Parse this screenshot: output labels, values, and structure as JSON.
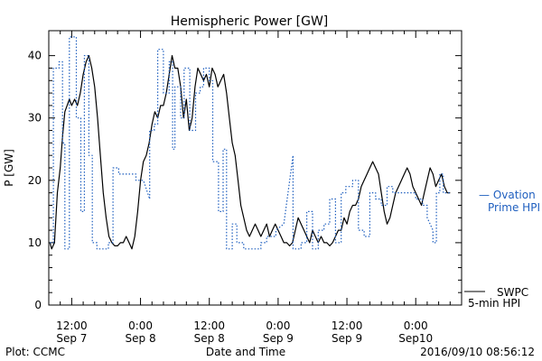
{
  "chart_data": {
    "type": "line",
    "title": "Hemispheric Power [GW]",
    "ylabel": "P [GW]",
    "xlabel": "Date and Time",
    "footer_left": "Plot: CCMC",
    "footer_right": "2016/09/10 08:56:12",
    "ylim": [
      0,
      44
    ],
    "xlim_hours": [
      -4,
      68
    ],
    "y_ticks": [
      0,
      10,
      20,
      30,
      40
    ],
    "x_ticks": [
      {
        "hour": 0,
        "line1": "12:00",
        "line2": "Sep 7"
      },
      {
        "hour": 12,
        "line1": "0:00",
        "line2": "Sep 8"
      },
      {
        "hour": 24,
        "line1": "12:00",
        "line2": "Sep 8"
      },
      {
        "hour": 36,
        "line1": "0:00",
        "line2": "Sep 9"
      },
      {
        "hour": 48,
        "line1": "12:00",
        "line2": "Sep 9"
      },
      {
        "hour": 60,
        "line1": "0:00",
        "line2": "Sep10"
      }
    ],
    "legend": {
      "ovation_label_1": "— Ovation",
      "ovation_label_2": "Prime HPI",
      "swpc_label_1": "SWPC",
      "swpc_label_2": "5-min HPI"
    },
    "colors": {
      "swpc": "#000000",
      "ovation": "#1f5fbf"
    },
    "series": [
      {
        "name": "SWPC 5-min HPI",
        "style": "solid",
        "color": "#000000",
        "points": [
          [
            -3.8,
            10
          ],
          [
            -3.5,
            9
          ],
          [
            -3,
            10
          ],
          [
            -2.5,
            18
          ],
          [
            -2,
            22
          ],
          [
            -1.6,
            27
          ],
          [
            -1.2,
            31
          ],
          [
            -0.8,
            32
          ],
          [
            -0.4,
            33
          ],
          [
            0,
            32
          ],
          [
            0.5,
            33
          ],
          [
            1,
            32
          ],
          [
            1.5,
            34
          ],
          [
            2,
            37
          ],
          [
            2.5,
            39
          ],
          [
            3,
            40
          ],
          [
            3.5,
            38
          ],
          [
            4,
            35
          ],
          [
            4.5,
            30
          ],
          [
            5,
            24
          ],
          [
            5.5,
            18
          ],
          [
            6,
            14
          ],
          [
            6.5,
            11
          ],
          [
            7,
            10
          ],
          [
            7.5,
            9.5
          ],
          [
            8,
            9.5
          ],
          [
            8.5,
            10
          ],
          [
            9,
            10
          ],
          [
            9.5,
            11
          ],
          [
            10,
            10
          ],
          [
            10.5,
            9
          ],
          [
            11,
            11
          ],
          [
            11.5,
            15
          ],
          [
            12,
            20
          ],
          [
            12.5,
            23
          ],
          [
            13,
            24
          ],
          [
            13.5,
            26
          ],
          [
            14,
            29
          ],
          [
            14.5,
            31
          ],
          [
            15,
            30
          ],
          [
            15.5,
            32
          ],
          [
            16,
            32
          ],
          [
            16.5,
            34
          ],
          [
            17,
            37
          ],
          [
            17.5,
            40
          ],
          [
            18,
            38
          ],
          [
            18.5,
            38
          ],
          [
            19,
            35
          ],
          [
            19.5,
            30
          ],
          [
            20,
            33
          ],
          [
            20.5,
            28
          ],
          [
            21,
            30
          ],
          [
            21.5,
            35
          ],
          [
            22,
            38
          ],
          [
            22.5,
            37
          ],
          [
            23,
            36
          ],
          [
            23.5,
            37
          ],
          [
            24,
            35
          ],
          [
            24.5,
            38
          ],
          [
            25,
            37
          ],
          [
            25.5,
            35
          ],
          [
            26,
            36
          ],
          [
            26.5,
            37
          ],
          [
            27,
            34
          ],
          [
            27.5,
            30
          ],
          [
            28,
            26
          ],
          [
            28.5,
            24
          ],
          [
            29,
            20
          ],
          [
            29.5,
            16
          ],
          [
            30,
            14
          ],
          [
            30.5,
            12
          ],
          [
            31,
            11
          ],
          [
            31.5,
            12
          ],
          [
            32,
            13
          ],
          [
            32.5,
            12
          ],
          [
            33,
            11
          ],
          [
            33.5,
            12
          ],
          [
            34,
            13
          ],
          [
            34.5,
            11
          ],
          [
            35,
            12
          ],
          [
            35.5,
            13
          ],
          [
            36,
            12
          ],
          [
            36.5,
            11
          ],
          [
            37,
            10
          ],
          [
            37.5,
            10
          ],
          [
            38,
            9.5
          ],
          [
            38.5,
            10
          ],
          [
            39,
            12
          ],
          [
            39.5,
            14
          ],
          [
            40,
            13
          ],
          [
            40.5,
            12
          ],
          [
            41,
            11
          ],
          [
            41.5,
            10
          ],
          [
            42,
            12
          ],
          [
            42.5,
            11
          ],
          [
            43,
            10
          ],
          [
            43.5,
            11
          ],
          [
            44,
            10
          ],
          [
            44.5,
            10
          ],
          [
            45,
            9.5
          ],
          [
            45.5,
            10
          ],
          [
            46,
            11
          ],
          [
            46.5,
            12
          ],
          [
            47,
            12
          ],
          [
            47.5,
            14
          ],
          [
            48,
            13
          ],
          [
            48.5,
            15
          ],
          [
            49,
            16
          ],
          [
            49.5,
            16
          ],
          [
            50,
            17
          ],
          [
            50.5,
            19
          ],
          [
            51,
            20
          ],
          [
            51.5,
            21
          ],
          [
            52,
            22
          ],
          [
            52.5,
            23
          ],
          [
            53,
            22
          ],
          [
            53.5,
            21
          ],
          [
            54,
            18
          ],
          [
            54.5,
            15
          ],
          [
            55,
            13
          ],
          [
            55.5,
            14
          ],
          [
            56,
            16
          ],
          [
            56.5,
            18
          ],
          [
            57,
            19
          ],
          [
            57.5,
            20
          ],
          [
            58,
            21
          ],
          [
            58.5,
            22
          ],
          [
            59,
            21
          ],
          [
            59.5,
            19
          ],
          [
            60,
            18
          ],
          [
            60.5,
            17
          ],
          [
            61,
            16
          ],
          [
            61.5,
            18
          ],
          [
            62,
            20
          ],
          [
            62.5,
            22
          ],
          [
            63,
            21
          ],
          [
            63.5,
            19
          ],
          [
            64,
            20
          ],
          [
            64.5,
            21
          ],
          [
            65,
            19
          ],
          [
            65.5,
            18
          ],
          [
            66,
            18
          ]
        ]
      },
      {
        "name": "Ovation Prime HPI",
        "style": "dotted",
        "color": "#1f5fbf",
        "points": [
          [
            -3.8,
            10
          ],
          [
            -3.2,
            10
          ],
          [
            -3.2,
            38
          ],
          [
            -2.2,
            38
          ],
          [
            -2.2,
            39
          ],
          [
            -1.6,
            39
          ],
          [
            -1.6,
            26
          ],
          [
            -1.2,
            26
          ],
          [
            -1.2,
            9
          ],
          [
            -0.4,
            9
          ],
          [
            -0.4,
            43
          ],
          [
            0.8,
            43
          ],
          [
            0.8,
            30
          ],
          [
            1.6,
            30
          ],
          [
            1.6,
            15
          ],
          [
            2.2,
            15
          ],
          [
            2.2,
            40
          ],
          [
            3,
            40
          ],
          [
            3,
            24
          ],
          [
            3.6,
            24
          ],
          [
            3.6,
            10
          ],
          [
            4.4,
            10
          ],
          [
            4.4,
            9
          ],
          [
            6.4,
            9
          ],
          [
            6.4,
            10
          ],
          [
            7.2,
            10
          ],
          [
            7.2,
            22
          ],
          [
            8.2,
            22
          ],
          [
            8.2,
            21
          ],
          [
            11.2,
            21
          ],
          [
            11.2,
            20
          ],
          [
            12,
            20
          ],
          [
            12.5,
            20
          ],
          [
            13.6,
            17
          ],
          [
            13.6,
            28
          ],
          [
            14.4,
            28
          ],
          [
            14.4,
            29
          ],
          [
            15,
            29
          ],
          [
            15,
            41
          ],
          [
            16,
            41
          ],
          [
            16,
            34
          ],
          [
            17,
            34
          ],
          [
            17,
            39
          ],
          [
            17.6,
            39
          ],
          [
            17.6,
            25
          ],
          [
            18,
            25
          ],
          [
            18,
            35
          ],
          [
            19,
            35
          ],
          [
            19,
            30
          ],
          [
            19.6,
            30
          ],
          [
            19.6,
            38
          ],
          [
            20.6,
            38
          ],
          [
            20.6,
            28
          ],
          [
            21.6,
            28
          ],
          [
            21.6,
            34
          ],
          [
            22.4,
            34
          ],
          [
            22.4,
            35
          ],
          [
            23,
            35
          ],
          [
            23,
            38
          ],
          [
            24,
            38
          ],
          [
            24,
            36
          ],
          [
            24.6,
            36
          ],
          [
            24.6,
            23
          ],
          [
            25.6,
            23
          ],
          [
            25.6,
            15
          ],
          [
            26.4,
            15
          ],
          [
            26.4,
            25
          ],
          [
            27,
            25
          ],
          [
            27,
            9
          ],
          [
            28,
            9
          ],
          [
            28,
            13
          ],
          [
            28.8,
            13
          ],
          [
            28.8,
            10
          ],
          [
            30,
            10
          ],
          [
            30,
            9
          ],
          [
            33,
            9
          ],
          [
            33,
            10
          ],
          [
            34,
            10
          ],
          [
            34,
            11
          ],
          [
            35.6,
            11
          ],
          [
            35.6,
            12
          ],
          [
            37,
            13
          ],
          [
            38.6,
            24
          ],
          [
            38.6,
            9
          ],
          [
            40,
            9
          ],
          [
            40,
            10
          ],
          [
            41,
            10
          ],
          [
            41,
            15
          ],
          [
            42,
            15
          ],
          [
            42,
            9
          ],
          [
            43,
            9
          ],
          [
            43,
            12
          ],
          [
            44,
            12
          ],
          [
            44,
            13
          ],
          [
            45,
            13
          ],
          [
            45,
            17
          ],
          [
            46,
            17
          ],
          [
            46,
            10
          ],
          [
            47,
            10
          ],
          [
            47,
            18
          ],
          [
            47.8,
            18
          ],
          [
            47.8,
            19
          ],
          [
            49,
            19
          ],
          [
            49,
            20
          ],
          [
            50,
            20
          ],
          [
            50,
            12
          ],
          [
            51,
            12
          ],
          [
            51,
            11
          ],
          [
            52,
            11
          ],
          [
            52,
            18
          ],
          [
            53,
            18
          ],
          [
            53,
            17
          ],
          [
            54,
            17
          ],
          [
            54,
            16
          ],
          [
            55,
            16
          ],
          [
            55,
            19
          ],
          [
            56,
            19
          ],
          [
            56,
            18
          ],
          [
            57.6,
            18
          ],
          [
            57.6,
            18
          ],
          [
            60,
            18
          ],
          [
            60,
            17
          ],
          [
            61.2,
            17
          ],
          [
            61.2,
            16
          ],
          [
            62,
            16
          ],
          [
            62,
            14
          ],
          [
            63,
            12
          ],
          [
            63,
            10
          ],
          [
            63.6,
            10
          ],
          [
            63.6,
            18
          ],
          [
            64.2,
            18
          ],
          [
            64.2,
            21
          ],
          [
            64.8,
            21
          ],
          [
            64.8,
            18
          ],
          [
            66,
            18
          ]
        ]
      }
    ]
  }
}
